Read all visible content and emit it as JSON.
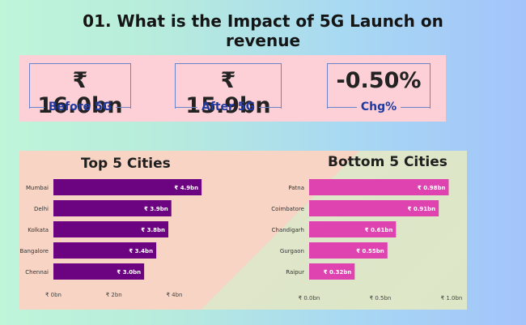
{
  "title": "01. What is the Impact  of 5G Launch on revenue",
  "kpis": [
    {
      "value": "₹ 16.0bn",
      "label": "Before 5G"
    },
    {
      "value": "₹ 15.9bn",
      "label": "After 5G"
    },
    {
      "value": "-0.50%",
      "label": "Chg%"
    }
  ],
  "chart_data": [
    {
      "type": "bar",
      "orientation": "horizontal",
      "title": "Top 5 Cities",
      "categories": [
        "Mumbai",
        "Delhi",
        "Kolkata",
        "Bangalore",
        "Chennai"
      ],
      "values": [
        4.9,
        3.9,
        3.8,
        3.4,
        3.0
      ],
      "data_labels": [
        "₹ 4.9bn",
        "₹ 3.9bn",
        "₹ 3.8bn",
        "₹ 3.4bn",
        "₹ 3.0bn"
      ],
      "xticks": [
        "₹ 0bn",
        "₹ 2bn",
        "₹ 4bn"
      ],
      "xtick_values": [
        0,
        2,
        4
      ],
      "xlim": [
        0,
        5.7
      ],
      "color": "#6c0380",
      "grid": false
    },
    {
      "type": "bar",
      "orientation": "horizontal",
      "title": "Bottom 5 Cities",
      "categories": [
        "Patna",
        "Coimbatore",
        "Chandigarh",
        "Gurgaon",
        "Raipur"
      ],
      "values": [
        0.98,
        0.91,
        0.61,
        0.55,
        0.32
      ],
      "data_labels": [
        "₹ 0.98bn",
        "₹ 0.91bn",
        "₹ 0.61bn",
        "₹ 0.55bn",
        "₹ 0.32bn"
      ],
      "xticks": [
        "₹ 0.0bn",
        "₹ 0.5bn",
        "₹ 1.0bn"
      ],
      "xtick_values": [
        0,
        0.5,
        1.0
      ],
      "xlim": [
        0,
        1.0
      ],
      "color": "#de43b0",
      "grid": false
    }
  ]
}
